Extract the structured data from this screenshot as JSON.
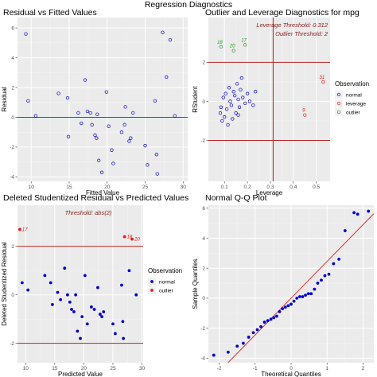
{
  "figure_title": "Regression Diagnostics",
  "colors": {
    "panel_bg": "#ebebeb",
    "grid_major": "#ffffff",
    "grid_minor": "#f5f5f5",
    "normal": "#0000cd",
    "leverage": "#e41a1c",
    "outlier": "#1fa01f",
    "ref_line": "#b22222",
    "qq_line": "#e03030",
    "label": "#8b1a1a"
  },
  "chart_data": [
    {
      "id": "resid_fitted",
      "type": "scatter",
      "title": "Residual vs Fitted Values",
      "xlabel": "Fitted Value",
      "ylabel": "Residual",
      "xlim": [
        8.2,
        30.6
      ],
      "ylim": [
        -4.3,
        6.7
      ],
      "xticks": [
        10,
        15,
        20,
        25,
        30
      ],
      "yticks": [
        -4,
        -2,
        0,
        2,
        4,
        6
      ],
      "xtick_labels": [
        "10",
        "15",
        "20",
        "25",
        "30"
      ],
      "ytick_labels": [
        "-4",
        "-2",
        "0",
        "2",
        "4",
        "6"
      ],
      "hline": 0,
      "points": [
        {
          "x": 9.3,
          "y": 5.6
        },
        {
          "x": 9.6,
          "y": 1.1
        },
        {
          "x": 10.6,
          "y": 0.1
        },
        {
          "x": 13.6,
          "y": 1.6
        },
        {
          "x": 14.8,
          "y": 1.3
        },
        {
          "x": 14.9,
          "y": -1.3
        },
        {
          "x": 16.2,
          "y": 0.3
        },
        {
          "x": 16.6,
          "y": -0.4
        },
        {
          "x": 17.1,
          "y": 2.5
        },
        {
          "x": 17.4,
          "y": 0.4
        },
        {
          "x": 17.8,
          "y": 0.3
        },
        {
          "x": 18.0,
          "y": -0.5
        },
        {
          "x": 18.4,
          "y": -1.2
        },
        {
          "x": 18.6,
          "y": -1.4
        },
        {
          "x": 18.7,
          "y": 0.2
        },
        {
          "x": 18.9,
          "y": -2.9
        },
        {
          "x": 19.3,
          "y": -3.7
        },
        {
          "x": 19.9,
          "y": 1.7
        },
        {
          "x": 20.2,
          "y": -0.6
        },
        {
          "x": 20.6,
          "y": -2.2
        },
        {
          "x": 20.8,
          "y": -3.1
        },
        {
          "x": 21.9,
          "y": -1.0
        },
        {
          "x": 22.3,
          "y": -0.5
        },
        {
          "x": 22.4,
          "y": 0.7
        },
        {
          "x": 22.9,
          "y": -1.6
        },
        {
          "x": 23.1,
          "y": -1.4
        },
        {
          "x": 23.4,
          "y": 0.3
        },
        {
          "x": 25.0,
          "y": -1.9
        },
        {
          "x": 25.3,
          "y": -3.2
        },
        {
          "x": 26.3,
          "y": 1.1
        },
        {
          "x": 26.5,
          "y": -2.5
        },
        {
          "x": 26.6,
          "y": -3.8
        },
        {
          "x": 27.3,
          "y": 5.7
        },
        {
          "x": 27.8,
          "y": 2.7
        },
        {
          "x": 28.3,
          "y": 5.2
        },
        {
          "x": 28.9,
          "y": 0.1
        }
      ]
    },
    {
      "id": "outlier_leverage",
      "type": "scatter",
      "title": "Outlier and Leverage Diagnostics for mpg",
      "xlabel": "Leverage",
      "ylabel": "RStudent",
      "xlim": [
        0.03,
        0.56
      ],
      "ylim": [
        -4.1,
        4.3
      ],
      "xticks": [
        0.1,
        0.2,
        0.3,
        0.4,
        0.5
      ],
      "yticks": [
        -2,
        0,
        2
      ],
      "xtick_labels": [
        "0.1",
        "0.2",
        "0.3",
        "0.4",
        "0.5"
      ],
      "ytick_labels": [
        "-2",
        "0",
        "2"
      ],
      "hlines": [
        -2,
        2
      ],
      "vline": 0.312,
      "annotations": [
        "Leverage Threshold: 0.312",
        "Outlier Threshold: 2"
      ],
      "legend": {
        "title": "Observation",
        "placement": "right",
        "items": [
          {
            "label": "normal",
            "color_key": "normal"
          },
          {
            "label": "leverage",
            "color_key": "leverage"
          },
          {
            "label": "outlier",
            "color_key": "outlier"
          }
        ]
      },
      "points": [
        {
          "x": 0.082,
          "y": -0.6,
          "group": "normal"
        },
        {
          "x": 0.085,
          "y": -0.3,
          "group": "normal"
        },
        {
          "x": 0.09,
          "y": -1.0,
          "group": "normal"
        },
        {
          "x": 0.095,
          "y": 0.2,
          "group": "normal"
        },
        {
          "x": 0.1,
          "y": -0.8,
          "group": "normal"
        },
        {
          "x": 0.105,
          "y": 0.4,
          "group": "normal"
        },
        {
          "x": 0.11,
          "y": -0.4,
          "group": "normal"
        },
        {
          "x": 0.115,
          "y": -1.2,
          "group": "normal"
        },
        {
          "x": 0.12,
          "y": 0.7,
          "group": "normal"
        },
        {
          "x": 0.125,
          "y": 0.0,
          "group": "normal"
        },
        {
          "x": 0.13,
          "y": -0.2,
          "group": "normal"
        },
        {
          "x": 0.135,
          "y": -0.9,
          "group": "normal"
        },
        {
          "x": 0.14,
          "y": 0.5,
          "group": "normal"
        },
        {
          "x": 0.145,
          "y": 0.3,
          "group": "normal"
        },
        {
          "x": 0.15,
          "y": -0.6,
          "group": "normal"
        },
        {
          "x": 0.155,
          "y": 0.9,
          "group": "normal"
        },
        {
          "x": 0.16,
          "y": 0.1,
          "group": "normal"
        },
        {
          "x": 0.165,
          "y": -0.3,
          "group": "normal"
        },
        {
          "x": 0.17,
          "y": 0.6,
          "group": "normal"
        },
        {
          "x": 0.175,
          "y": 1.2,
          "group": "normal"
        },
        {
          "x": 0.18,
          "y": 0.2,
          "group": "normal"
        },
        {
          "x": 0.19,
          "y": -0.1,
          "group": "normal"
        },
        {
          "x": 0.2,
          "y": 0.4,
          "group": "normal"
        },
        {
          "x": 0.21,
          "y": 0.0,
          "group": "normal"
        },
        {
          "x": 0.225,
          "y": -0.2,
          "group": "normal"
        },
        {
          "x": 0.235,
          "y": 0.5,
          "group": "normal"
        },
        {
          "x": 0.16,
          "y": -0.7,
          "group": "normal"
        },
        {
          "x": 0.45,
          "y": -0.7,
          "group": "leverage",
          "label": "9"
        },
        {
          "x": 0.53,
          "y": 1.0,
          "group": "leverage",
          "label": "31"
        },
        {
          "x": 0.085,
          "y": 2.8,
          "group": "outlier",
          "label": "18"
        },
        {
          "x": 0.14,
          "y": 2.6,
          "group": "outlier",
          "label": "20"
        },
        {
          "x": 0.19,
          "y": 2.9,
          "group": "outlier",
          "label": "17"
        }
      ]
    },
    {
      "id": "deleted_studentized",
      "type": "scatter",
      "title": "Deleted Studentized Residual vs Predicted Values",
      "xlabel": "Predicted Value",
      "ylabel": "Deleted Studentized Residual",
      "xlim": [
        8.6,
        30.2
      ],
      "ylim": [
        -2.8,
        3.7
      ],
      "xticks": [
        10,
        15,
        20,
        25,
        30
      ],
      "yticks": [
        -2,
        0,
        2
      ],
      "xtick_labels": [
        "10",
        "15",
        "20",
        "25",
        "30"
      ],
      "ytick_labels": [
        "-2",
        "0",
        "2"
      ],
      "hlines": [
        -2,
        2
      ],
      "annotations": [
        "Threshold: abs(2)"
      ],
      "legend": {
        "title": "Observation",
        "placement": "right",
        "items": [
          {
            "label": "normal",
            "color_key": "normal"
          },
          {
            "label": "outlier",
            "color_key": "leverage"
          }
        ]
      },
      "points": [
        {
          "x": 9.4,
          "y": 0.5,
          "group": "normal"
        },
        {
          "x": 10.4,
          "y": 0.2,
          "group": "normal"
        },
        {
          "x": 13.3,
          "y": 0.8,
          "group": "normal"
        },
        {
          "x": 14.3,
          "y": 0.5,
          "group": "normal"
        },
        {
          "x": 14.6,
          "y": -0.4,
          "group": "normal"
        },
        {
          "x": 15.5,
          "y": 0.1,
          "group": "normal"
        },
        {
          "x": 16.0,
          "y": -0.2,
          "group": "normal"
        },
        {
          "x": 16.7,
          "y": 1.1,
          "group": "normal"
        },
        {
          "x": 17.2,
          "y": 0.0,
          "group": "normal"
        },
        {
          "x": 17.6,
          "y": -0.3,
          "group": "normal"
        },
        {
          "x": 17.9,
          "y": -0.6,
          "group": "normal"
        },
        {
          "x": 18.3,
          "y": -0.7,
          "group": "normal"
        },
        {
          "x": 18.6,
          "y": 0.0,
          "group": "normal"
        },
        {
          "x": 18.9,
          "y": -1.5,
          "group": "normal"
        },
        {
          "x": 19.4,
          "y": -1.8,
          "group": "normal"
        },
        {
          "x": 19.7,
          "y": -0.9,
          "group": "normal"
        },
        {
          "x": 20.2,
          "y": 0.8,
          "group": "normal"
        },
        {
          "x": 20.6,
          "y": -1.2,
          "group": "normal"
        },
        {
          "x": 21.3,
          "y": -0.5,
          "group": "normal"
        },
        {
          "x": 21.8,
          "y": -0.6,
          "group": "normal"
        },
        {
          "x": 22.4,
          "y": 0.3,
          "group": "normal"
        },
        {
          "x": 22.8,
          "y": -0.8,
          "group": "normal"
        },
        {
          "x": 23.1,
          "y": -0.9,
          "group": "normal"
        },
        {
          "x": 23.4,
          "y": -0.7,
          "group": "normal"
        },
        {
          "x": 25.0,
          "y": -1.2,
          "group": "normal"
        },
        {
          "x": 25.4,
          "y": -1.6,
          "group": "normal"
        },
        {
          "x": 26.5,
          "y": 0.4,
          "group": "normal"
        },
        {
          "x": 26.7,
          "y": -1.1,
          "group": "normal"
        },
        {
          "x": 26.8,
          "y": -1.8,
          "group": "normal"
        },
        {
          "x": 27.8,
          "y": 1.0,
          "group": "normal"
        },
        {
          "x": 29.0,
          "y": 0.0,
          "group": "normal"
        },
        {
          "x": 9.0,
          "y": 2.7,
          "group": "outlier",
          "label": "17"
        },
        {
          "x": 27.0,
          "y": 2.4,
          "group": "outlier",
          "label": "18"
        },
        {
          "x": 28.3,
          "y": 2.3,
          "group": "outlier",
          "label": "20"
        }
      ]
    },
    {
      "id": "normal_qq",
      "type": "scatter",
      "title": "Normal Q-Q Plot",
      "xlabel": "Theoretical Quantiles",
      "ylabel": "Sample Quantiles",
      "xlim": [
        -2.3,
        2.3
      ],
      "ylim": [
        -4.3,
        6.2
      ],
      "xticks": [
        -2,
        -1,
        0,
        1,
        2
      ],
      "yticks": [
        -4,
        -2,
        0,
        2,
        4,
        6
      ],
      "xtick_labels": [
        "-2",
        "-1",
        "0",
        "1",
        "2"
      ],
      "ytick_labels": [
        "-4",
        "-2",
        "0",
        "2",
        "4",
        "6"
      ],
      "qq_line": {
        "intercept": 0,
        "slope": 2.45
      },
      "points": [
        {
          "x": -2.15,
          "y": -3.8
        },
        {
          "x": -1.75,
          "y": -3.6
        },
        {
          "x": -1.5,
          "y": -3.2
        },
        {
          "x": -1.33,
          "y": -3.0
        },
        {
          "x": -1.18,
          "y": -2.6
        },
        {
          "x": -1.05,
          "y": -2.3
        },
        {
          "x": -0.94,
          "y": -2.1
        },
        {
          "x": -0.84,
          "y": -1.9
        },
        {
          "x": -0.74,
          "y": -1.6
        },
        {
          "x": -0.65,
          "y": -1.5
        },
        {
          "x": -0.56,
          "y": -1.4
        },
        {
          "x": -0.48,
          "y": -1.3
        },
        {
          "x": -0.4,
          "y": -1.2
        },
        {
          "x": -0.32,
          "y": -0.9
        },
        {
          "x": -0.24,
          "y": -0.7
        },
        {
          "x": -0.16,
          "y": -0.6
        },
        {
          "x": -0.08,
          "y": -0.5
        },
        {
          "x": 0.0,
          "y": -0.4
        },
        {
          "x": 0.08,
          "y": -0.2
        },
        {
          "x": 0.16,
          "y": 0.0
        },
        {
          "x": 0.24,
          "y": 0.1
        },
        {
          "x": 0.32,
          "y": 0.1
        },
        {
          "x": 0.4,
          "y": 0.2
        },
        {
          "x": 0.48,
          "y": 0.3
        },
        {
          "x": 0.56,
          "y": 0.3
        },
        {
          "x": 0.65,
          "y": 0.6
        },
        {
          "x": 0.74,
          "y": 1.0
        },
        {
          "x": 0.84,
          "y": 1.2
        },
        {
          "x": 0.94,
          "y": 1.5
        },
        {
          "x": 1.05,
          "y": 1.6
        },
        {
          "x": 1.18,
          "y": 2.3
        },
        {
          "x": 1.33,
          "y": 2.6
        },
        {
          "x": 1.5,
          "y": 4.5
        },
        {
          "x": 1.75,
          "y": 5.7
        },
        {
          "x": 2.15,
          "y": 5.8
        },
        {
          "x": 1.85,
          "y": 5.6
        }
      ]
    }
  ]
}
